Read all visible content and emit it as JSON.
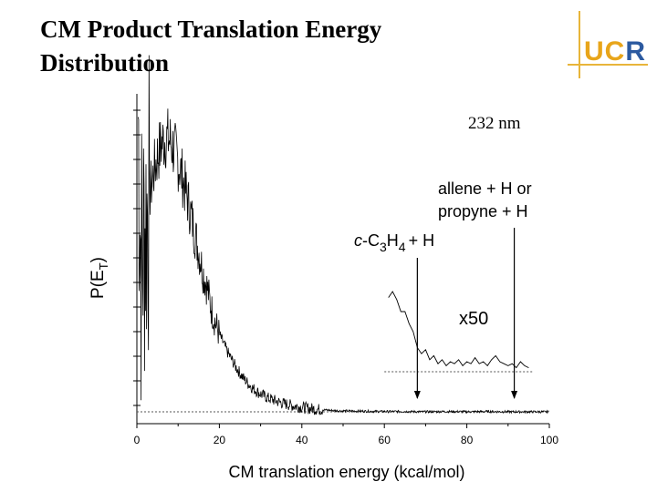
{
  "slide": {
    "title_line1": "CM Product Translation Energy",
    "title_line2": "Distribution"
  },
  "logo": {
    "text_uc": "UC",
    "text_r": "R"
  },
  "chart_data": {
    "type": "line",
    "title": "",
    "xlabel": "CM translation energy (kcal/mol)",
    "ylabel": "P(E",
    "ylabel_sub": "T",
    "ylabel_close": ")",
    "xlim": [
      0,
      100
    ],
    "ylim": [
      0,
      1.0
    ],
    "xticks": [
      0,
      20,
      40,
      60,
      80,
      100
    ],
    "wavelength_label": "232 nm",
    "scale_label": "x50",
    "series": [
      {
        "x": [
          0.3,
          1,
          2,
          3,
          4,
          5,
          6,
          7,
          8,
          9,
          10,
          11,
          12,
          13,
          14,
          15,
          16,
          17,
          18,
          19,
          20,
          22,
          24,
          26,
          28,
          30,
          32,
          35,
          38,
          40,
          42,
          45,
          48,
          50,
          55,
          60,
          65,
          70,
          75,
          80,
          85,
          90,
          95,
          100
        ],
        "y": [
          1.0,
          0.5,
          0.62,
          0.72,
          0.8,
          0.86,
          0.9,
          0.92,
          0.91,
          0.88,
          0.84,
          0.79,
          0.73,
          0.67,
          0.6,
          0.54,
          0.47,
          0.42,
          0.35,
          0.3,
          0.26,
          0.2,
          0.15,
          0.11,
          0.08,
          0.06,
          0.045,
          0.03,
          0.02,
          0.015,
          0.011,
          0.007,
          0.004,
          0.003,
          0.002,
          0.001,
          0.001,
          0.0,
          0.001,
          0.0,
          0.001,
          0.0,
          0.0,
          0.0
        ]
      },
      {
        "x": [
          61,
          62,
          63,
          64,
          65,
          66,
          67,
          68,
          69,
          70,
          71,
          72,
          73,
          74,
          75,
          76,
          77,
          78,
          79,
          80,
          81,
          82,
          83,
          84,
          85,
          86,
          87,
          88,
          89,
          90,
          91,
          92,
          93,
          94,
          95
        ],
        "y": [
          0.37,
          0.4,
          0.36,
          0.3,
          0.3,
          0.24,
          0.2,
          0.12,
          0.09,
          0.11,
          0.06,
          0.08,
          0.04,
          0.06,
          0.03,
          0.05,
          0.04,
          0.06,
          0.03,
          0.05,
          0.04,
          0.07,
          0.04,
          0.05,
          0.03,
          0.06,
          0.08,
          0.05,
          0.04,
          0.03,
          0.04,
          0.02,
          0.05,
          0.03,
          0.02
        ]
      }
    ],
    "annotations": [
      {
        "id": "c3h4",
        "prefix": "c",
        "main": "-C",
        "sub1": "3",
        "mid": "H",
        "sub2": "4",
        "suffix": "+ H",
        "arrow_x": 68
      },
      {
        "id": "allene",
        "line1": "allene + H or",
        "line2": "propyne + H",
        "arrow_x": 91.5
      }
    ]
  }
}
